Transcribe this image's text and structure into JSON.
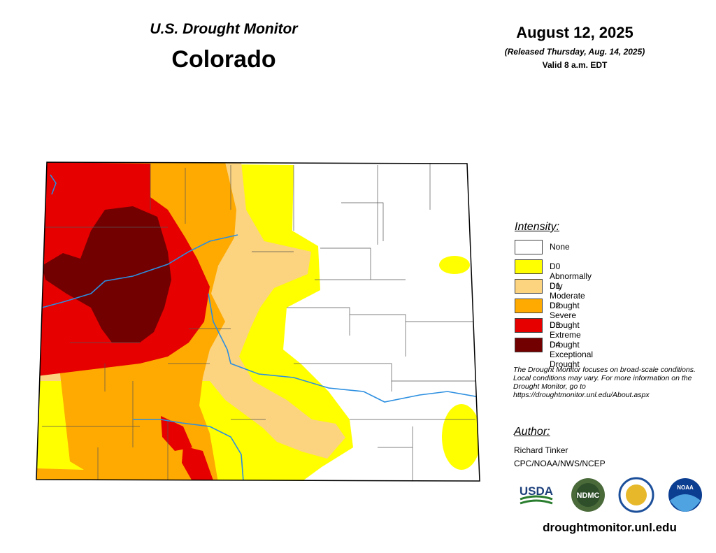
{
  "header": {
    "title": "U.S. Drought Monitor",
    "state": "Colorado",
    "date": "August 12, 2025",
    "released": "(Released Thursday, Aug. 14, 2025)",
    "valid": "Valid 8 a.m. EDT"
  },
  "legend": {
    "title": "Intensity:",
    "items": [
      {
        "label": "None",
        "color": "#ffffff"
      },
      {
        "label": "D0 Abnormally Dry",
        "color": "#ffff00"
      },
      {
        "label": "D1 Moderate Drought",
        "color": "#fcd37f"
      },
      {
        "label": "D2 Severe Drought",
        "color": "#ffaa00"
      },
      {
        "label": "D3 Extreme Drought",
        "color": "#e60000"
      },
      {
        "label": "D4 Exceptional Drought",
        "color": "#730000"
      }
    ]
  },
  "note": "The Drought Monitor focuses on broad-scale conditions. Local conditions may vary. For more information on the Drought Monitor, go to https://droughtmonitor.unl.edu/About.aspx",
  "author": {
    "heading": "Author:",
    "name": "Richard Tinker",
    "org": "CPC/NOAA/NWS/NCEP"
  },
  "logos": [
    "USDA",
    "NDMC",
    "NOAA"
  ],
  "url": "droughtmonitor.unl.edu"
}
